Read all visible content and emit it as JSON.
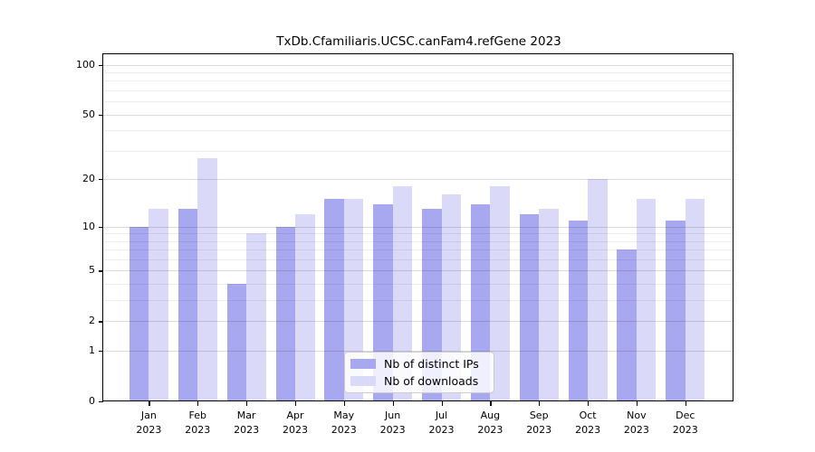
{
  "chart_data": {
    "type": "bar",
    "title": "TxDb.Cfamiliaris.UCSC.canFam4.refGene 2023",
    "categories": [
      "Jan",
      "Feb",
      "Mar",
      "Apr",
      "May",
      "Jun",
      "Jul",
      "Aug",
      "Sep",
      "Oct",
      "Nov",
      "Dec"
    ],
    "year_label": "2023",
    "series": [
      {
        "name": "Nb of distinct IPs",
        "color": "#a8a8f0",
        "values": [
          10,
          13,
          4,
          10,
          15,
          14,
          13,
          14,
          12,
          11,
          7,
          11
        ]
      },
      {
        "name": "Nb of downloads",
        "color": "#dadaf8",
        "values": [
          13,
          27,
          9,
          12,
          15,
          18,
          16,
          18,
          13,
          20,
          15,
          15
        ]
      }
    ],
    "y_scale": "log10(value+1)",
    "y_ticks": [
      0,
      1,
      2,
      5,
      10,
      20,
      50,
      100
    ],
    "y_tick_labels": [
      "0",
      "1",
      "2",
      "5",
      "10",
      "20",
      "50",
      "100"
    ],
    "minor_gridlines": [
      3,
      4,
      6,
      7,
      8,
      9,
      30,
      40,
      60,
      70,
      80,
      90
    ],
    "ylim": [
      0,
      116
    ],
    "xlabel": "",
    "ylabel": "",
    "grid": "major-and-minor",
    "legend_position": "bottom-center",
    "colors": {
      "background": "#ffffff",
      "axis": "#000000",
      "text": "#000000",
      "legend_border": "#cccccc"
    }
  }
}
